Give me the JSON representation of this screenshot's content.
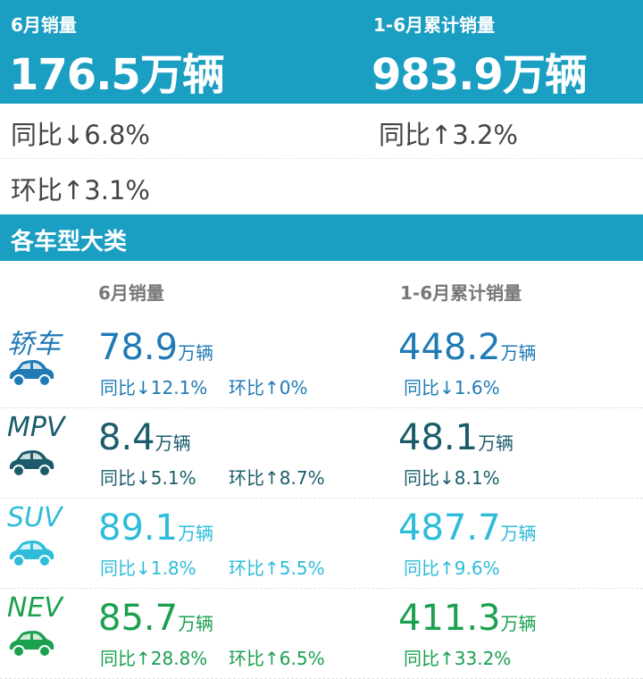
{
  "header": {
    "month_label": "6月销量",
    "month_value": "176.5万辆",
    "ytd_label": "1-6月累计销量",
    "ytd_value": "983.9万辆"
  },
  "summary": {
    "month_yoy": "同比↓6.8%",
    "month_mom": "环比↑3.1%",
    "ytd_yoy": "同比↑3.2%"
  },
  "section": {
    "title": "各车型大类",
    "col_month": "6月销量",
    "col_ytd": "1-6月累计销量"
  },
  "unit": "万辆",
  "categories": [
    {
      "name": "轿车",
      "icon": "sedan-icon",
      "color": "#1f7ab5",
      "month": "78.9",
      "month_yoy": "同比↓12.1%",
      "month_mom": "环比↑0%",
      "ytd": "448.2",
      "ytd_yoy": "同比↓1.6%"
    },
    {
      "name": "MPV",
      "icon": "mpv-icon",
      "color": "#1b5c6b",
      "month": "8.4",
      "month_yoy": "同比↓5.1%",
      "month_mom": "环比↑8.7%",
      "ytd": "48.1",
      "ytd_yoy": "同比↓8.1%"
    },
    {
      "name": "SUV",
      "icon": "suv-icon",
      "color": "#2dbcd9",
      "month": "89.1",
      "month_yoy": "同比↓1.8%",
      "month_mom": "环比↑5.5%",
      "ytd": "487.7",
      "ytd_yoy": "同比↑9.6%"
    },
    {
      "name": "NEV",
      "icon": "nev-icon",
      "color": "#1aa04f",
      "month": "85.7",
      "month_yoy": "同比↑28.8%",
      "month_mom": "环比↑6.5%",
      "ytd": "411.3",
      "ytd_yoy": "同比↑33.2%"
    }
  ]
}
